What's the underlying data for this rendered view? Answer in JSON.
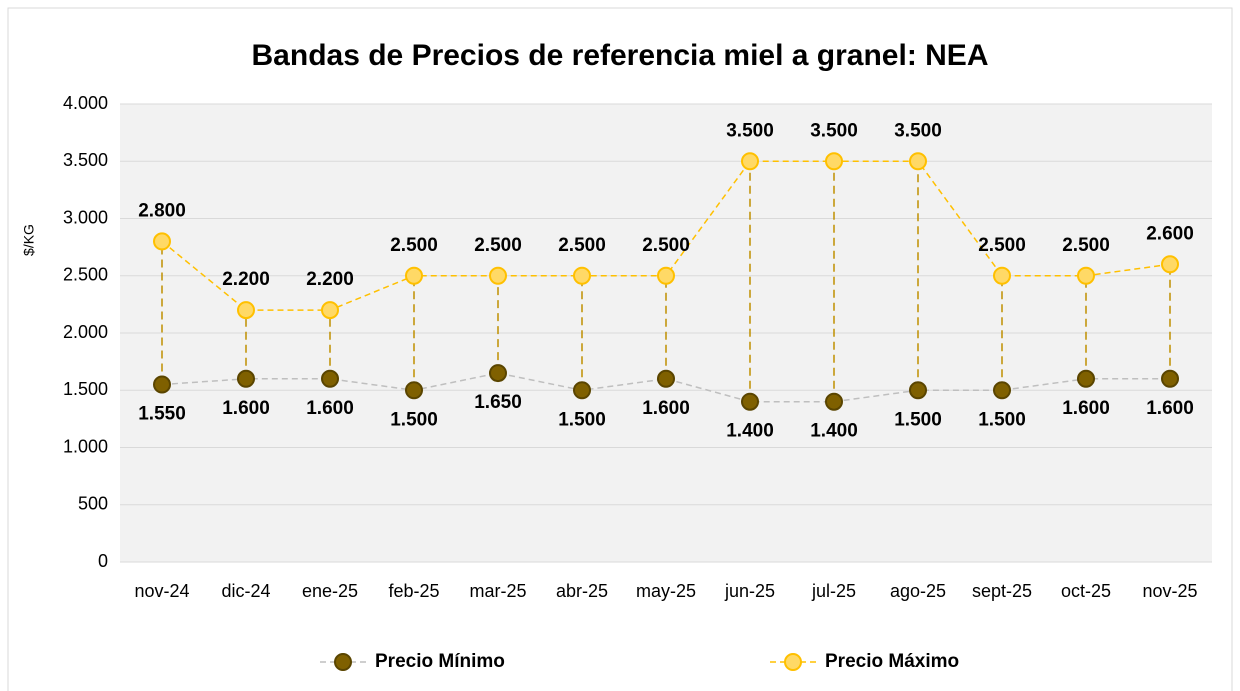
{
  "chart_data": {
    "type": "line",
    "title": "Bandas de Precios de referencia miel a granel: NEA",
    "y_label": "$/KG",
    "categories": [
      "nov-24",
      "dic-24",
      "ene-25",
      "feb-25",
      "mar-25",
      "abr-25",
      "may-25",
      "jun-25",
      "jul-25",
      "ago-25",
      "sept-25",
      "oct-25",
      "nov-25"
    ],
    "series": [
      {
        "name": "Precio Mínimo",
        "color": "#7f6000",
        "line_color": "#bfbfbf",
        "values": [
          1550,
          1600,
          1600,
          1500,
          1650,
          1500,
          1600,
          1400,
          1400,
          1500,
          1500,
          1600,
          1600
        ],
        "value_labels": [
          "1.550",
          "1.600",
          "1.600",
          "1.500",
          "1.650",
          "1.500",
          "1.600",
          "1.400",
          "1.400",
          "1.500",
          "1.500",
          "1.600",
          "1.600"
        ]
      },
      {
        "name": "Precio Máximo",
        "color": "#ffd966",
        "line_color": "#ffc000",
        "values": [
          2800,
          2200,
          2200,
          2500,
          2500,
          2500,
          2500,
          3500,
          3500,
          3500,
          2500,
          2500,
          2600
        ],
        "value_labels": [
          "2.800",
          "2.200",
          "2.200",
          "2.500",
          "2.500",
          "2.500",
          "2.500",
          "3.500",
          "3.500",
          "3.500",
          "2.500",
          "2.500",
          "2.600"
        ]
      }
    ],
    "ylim": [
      0,
      4000
    ],
    "yticks": [
      0,
      500,
      {
        "value": 1000,
        "label": "1.000"
      },
      {
        "value": 1500,
        "label": "1.500"
      },
      {
        "value": 2000,
        "label": "2.000"
      },
      {
        "value": 2500,
        "label": "2.500"
      },
      {
        "value": 3000,
        "label": "3.000"
      },
      {
        "value": 3500,
        "label": "3.500"
      },
      {
        "value": 4000,
        "label": "4.000"
      }
    ],
    "grid": true,
    "drop_lines_color": "#bf9000",
    "legend": "bottom"
  }
}
